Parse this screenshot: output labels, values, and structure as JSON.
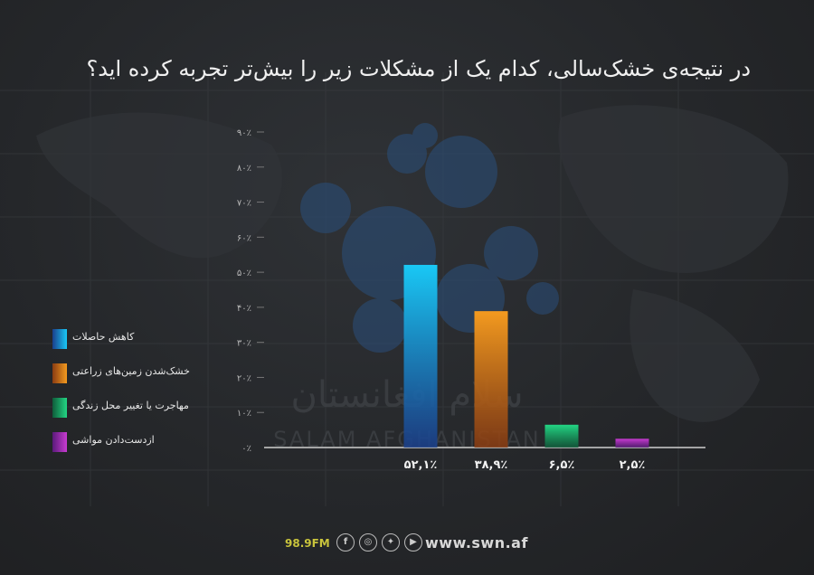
{
  "header": {
    "title": "در نتیجه‌ی خشک‌سالی، کدام یک از مشکلات زیر را بیش‌تر تجربه کرده اید؟"
  },
  "chart_data": {
    "type": "bar",
    "title": "در نتیجه‌ی خشک‌سالی، کدام یک از مشکلات زیر را بیش‌تر تجربه کرده اید؟",
    "categories": [
      "کاهش حاصلات",
      "خشک‌شدن زمین‌های زراعتی",
      "مهاجرت یا تغییر محل زندگی",
      "ازدست‌دادن مواشی"
    ],
    "values": [
      52.1,
      38.9,
      6.5,
      2.5
    ],
    "value_labels": [
      "۵۲,۱٪",
      "۳۸,۹٪",
      "۶,۵٪",
      "۲,۵٪"
    ],
    "ylim": [
      0,
      90
    ],
    "yticks": [
      0,
      10,
      20,
      30,
      40,
      50,
      60,
      70,
      80,
      90
    ],
    "ytick_labels": [
      "۰٪",
      "۱۰٪",
      "۲۰٪",
      "۳۰٪",
      "۴۰٪",
      "۵۰٪",
      "۶۰٪",
      "۷۰٪",
      "۸۰٪",
      "۹۰٪"
    ],
    "colors": [
      [
        "#19c8f5",
        "#1a3f8c"
      ],
      [
        "#f39a1f",
        "#8a3c12"
      ],
      [
        "#23d684",
        "#0f5c3a"
      ],
      [
        "#c83bd1",
        "#5a1a7a"
      ]
    ],
    "grid": true,
    "legend": "left"
  },
  "legend": {
    "items": [
      {
        "label": "کاهش حاصلات",
        "color": "#1a8fe0"
      },
      {
        "label": "خشک‌شدن زمین‌های زراعتی",
        "color": "#e0731a"
      },
      {
        "label": "مهاجرت یا تغییر محل زندگی",
        "color": "#1fbf78"
      },
      {
        "label": "ازدست‌دادن مواشی",
        "color": "#b02fc4"
      }
    ]
  },
  "watermark": {
    "persian": "سلام افغانستان",
    "latin": "SALAM AFGHANISTAN"
  },
  "footer": {
    "frequency": "98.9FM",
    "website": "www.swn.af",
    "icons": [
      "facebook-icon",
      "instagram-icon",
      "twitter-icon",
      "youtube-icon"
    ]
  }
}
